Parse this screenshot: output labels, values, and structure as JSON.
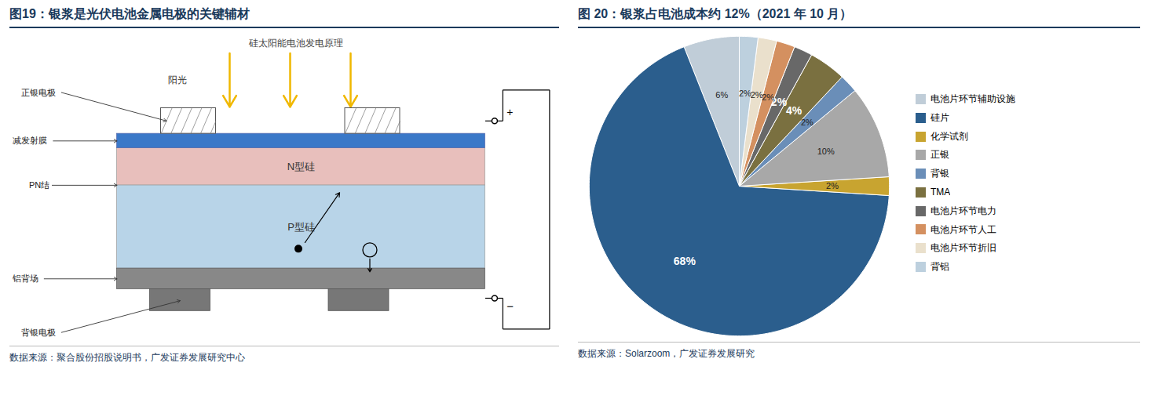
{
  "chart_data": [
    {
      "type": "diagram",
      "title": "图19：银浆是光伏电池金属电极的关键辅材",
      "subtitle": "硅太阳能电池发电原理",
      "annotations": [
        "阳光",
        "N型硅",
        "P型硅",
        "正银电极",
        "减发射膜",
        "PN结",
        "铝背场",
        "背银电极",
        "+",
        "−"
      ],
      "colors": [
        "#B8D4E8",
        "#E8BFBC",
        "#3A78C8",
        "#888888",
        "#F0B800"
      ],
      "caption": "数据来源：聚合股份招股说明书，广发证券发展研究中心"
    },
    {
      "type": "pie",
      "title": "图 20：银浆占电池成本约 12%（2021 年 10 月）",
      "categories": [
        "电池片环节辅助设施",
        "硅片",
        "化学试剂",
        "正银",
        "背银",
        "TMA",
        "电池片环节电力",
        "电池片环节人工",
        "电池片环节折旧",
        "背铝"
      ],
      "values": [
        6,
        68,
        2,
        10,
        2,
        4,
        2,
        2,
        2,
        2
      ],
      "value_labels": [
        "6%",
        "68%",
        "2%",
        "10%",
        "2%",
        "4%",
        "2%",
        "2%",
        "2%",
        "2%"
      ],
      "colors": [
        "#C0CDD8",
        "#2B5E8D",
        "#C8A430",
        "#A8A8A8",
        "#6A8EB8",
        "#7A7040",
        "#686868",
        "#D49060",
        "#EAE0CC",
        "#BDD0DE"
      ],
      "data_labels": true,
      "legend": "right",
      "caption": "数据来源：Solarzoom，广发证券发展研究"
    }
  ]
}
